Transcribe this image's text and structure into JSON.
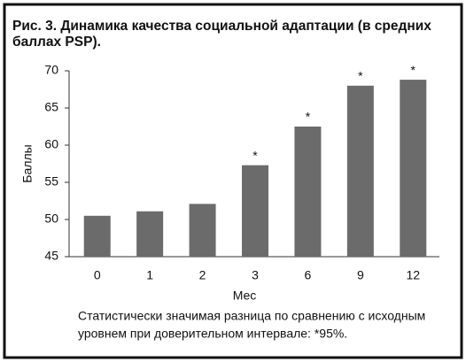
{
  "chart_data": {
    "type": "bar",
    "title": [
      "Рис. 3. Динамика качества социальной адаптации (в средних",
      "баллах PSP)."
    ],
    "categories": [
      "0",
      "1",
      "2",
      "3",
      "6",
      "9",
      "12"
    ],
    "values": [
      50.5,
      51.1,
      52.1,
      57.3,
      62.5,
      68.0,
      68.8
    ],
    "annotations": [
      null,
      null,
      null,
      "*",
      "*",
      "*",
      "*"
    ],
    "color": "#6b6b6b",
    "ylim": [
      45,
      70
    ],
    "yticks": [
      45,
      50,
      55,
      60,
      65,
      70
    ],
    "y_label": "Баллы",
    "x_label": "Мес",
    "footnote": [
      "Статистически значимая разница по сравнению с исходным",
      "уровнем при доверительном интервале: *95%."
    ]
  }
}
